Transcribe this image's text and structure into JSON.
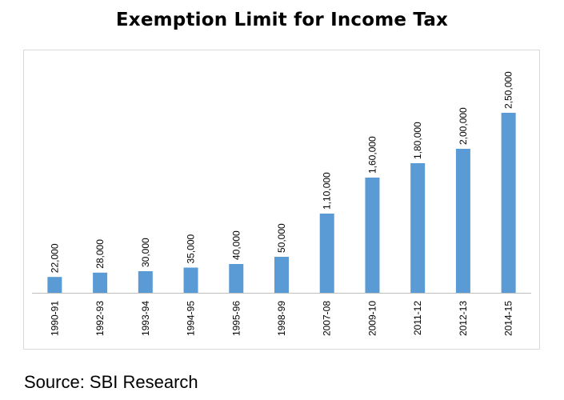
{
  "chart_data": {
    "type": "bar",
    "title": "Exemption Limit for Income Tax",
    "categories": [
      "1990-91",
      "1992-93",
      "1993-94",
      "1994-95",
      "1995-96",
      "1998-99",
      "2007-08",
      "2009-10",
      "2011-12",
      "2012-13",
      "2014-15"
    ],
    "values": [
      22000,
      28000,
      30000,
      35000,
      40000,
      50000,
      110000,
      160000,
      180000,
      200000,
      250000
    ],
    "data_labels": [
      "22,000",
      "28,000",
      "30,000",
      "35,000",
      "40,000",
      "50,000",
      "1,10,000",
      "1,60,000",
      "1,80,000",
      "2,00,000",
      "2,50,000"
    ],
    "xlabel": "",
    "ylabel": "",
    "ylim": [
      0,
      280000
    ],
    "grid": false,
    "legend": "none",
    "bar_color": "#5b9bd5"
  },
  "source": "Source: SBI Research"
}
